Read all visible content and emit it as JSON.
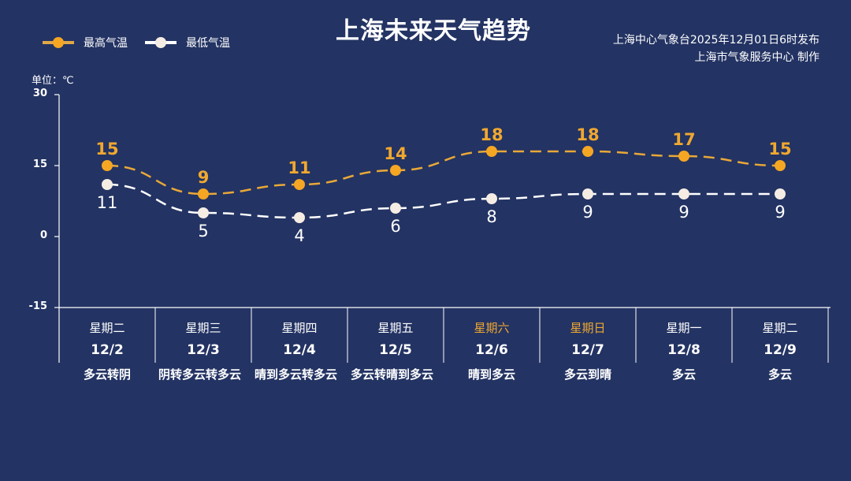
{
  "title": "上海未来天气趋势",
  "legend": [
    {
      "label": "最高气温",
      "color": "#f5a623"
    },
    {
      "label": "最低气温",
      "color": "#f5ece4"
    }
  ],
  "source": {
    "line1": "上海中心气象台2025年12月01日6时发布",
    "line2": "上海市气象服务中心 制作"
  },
  "unit_label": "单位：℃",
  "colors": {
    "background": "#233363",
    "high": "#f5a623",
    "low": "#f5ece4",
    "weekend": "#f0a830",
    "axis": "#ffffff"
  },
  "days": [
    {
      "dow": "星期二",
      "date": "12/2",
      "weather": "多云转阴",
      "weekend": false
    },
    {
      "dow": "星期三",
      "date": "12/3",
      "weather": "阴转多云转多云",
      "weekend": false
    },
    {
      "dow": "星期四",
      "date": "12/4",
      "weather": "晴到多云转多云",
      "weekend": false
    },
    {
      "dow": "星期五",
      "date": "12/5",
      "weather": "多云转晴到多云",
      "weekend": false
    },
    {
      "dow": "星期六",
      "date": "12/6",
      "weather": "晴到多云",
      "weekend": true
    },
    {
      "dow": "星期日",
      "date": "12/7",
      "weather": "多云到晴",
      "weekend": true
    },
    {
      "dow": "星期一",
      "date": "12/8",
      "weather": "多云",
      "weekend": false
    },
    {
      "dow": "星期二",
      "date": "12/9",
      "weather": "多云",
      "weekend": false
    }
  ],
  "chart_data": {
    "type": "line",
    "title": "上海未来天气趋势",
    "categories": [
      "12/2",
      "12/3",
      "12/4",
      "12/5",
      "12/6",
      "12/7",
      "12/8",
      "12/9"
    ],
    "series": [
      {
        "name": "最高气温",
        "values": [
          15,
          9,
          11,
          14,
          18,
          18,
          17,
          15
        ],
        "color": "#f5a623",
        "style": "dashed"
      },
      {
        "name": "最低气温",
        "values": [
          11,
          5,
          4,
          6,
          8,
          9,
          9,
          9
        ],
        "color": "#f5ece4",
        "style": "dashed"
      }
    ],
    "xlabel": "",
    "ylabel": "单位：℃",
    "ylim": [
      -15,
      30
    ],
    "yticks": [
      30,
      15,
      0,
      -15
    ],
    "grid": false,
    "legend_position": "top-left",
    "data_labels": true
  }
}
